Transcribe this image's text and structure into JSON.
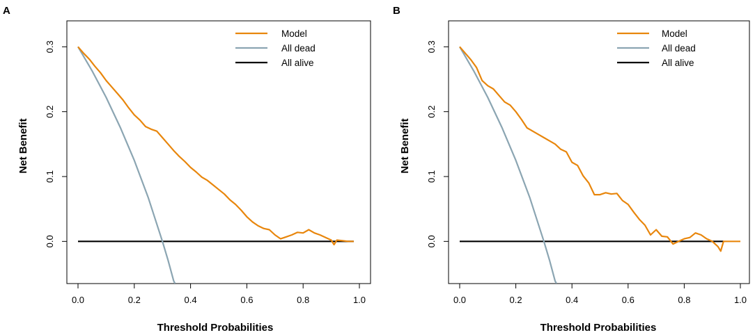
{
  "chart_data": [
    {
      "panel_label": "A",
      "type": "line",
      "xlabel": "Threshold Probabilities",
      "ylabel": "Net Benefit",
      "xlim": [
        0.0,
        1.0
      ],
      "ylim": [
        -0.065,
        0.34
      ],
      "xticks": [
        "0.0",
        "0.2",
        "0.4",
        "0.6",
        "0.8",
        "1.0"
      ],
      "yticks": [
        "0.0",
        "0.1",
        "0.2",
        "0.3"
      ],
      "legend_position": "top-right",
      "series": [
        {
          "name": "Model",
          "color": "#E8860C",
          "x": [
            0.0,
            0.02,
            0.04,
            0.06,
            0.08,
            0.1,
            0.12,
            0.14,
            0.16,
            0.18,
            0.2,
            0.22,
            0.24,
            0.26,
            0.28,
            0.3,
            0.32,
            0.34,
            0.36,
            0.38,
            0.4,
            0.42,
            0.44,
            0.46,
            0.48,
            0.5,
            0.52,
            0.54,
            0.56,
            0.58,
            0.6,
            0.62,
            0.64,
            0.66,
            0.68,
            0.7,
            0.72,
            0.74,
            0.76,
            0.78,
            0.8,
            0.82,
            0.84,
            0.86,
            0.88,
            0.9,
            0.91,
            0.92,
            0.94,
            0.96,
            0.98
          ],
          "y": [
            0.3,
            0.29,
            0.281,
            0.27,
            0.26,
            0.248,
            0.238,
            0.228,
            0.218,
            0.206,
            0.195,
            0.187,
            0.177,
            0.173,
            0.17,
            0.16,
            0.15,
            0.14,
            0.131,
            0.123,
            0.114,
            0.107,
            0.099,
            0.094,
            0.087,
            0.08,
            0.073,
            0.064,
            0.057,
            0.048,
            0.038,
            0.03,
            0.024,
            0.02,
            0.018,
            0.01,
            0.004,
            0.007,
            0.01,
            0.014,
            0.013,
            0.018,
            0.013,
            0.01,
            0.006,
            0.002,
            -0.005,
            0.002,
            0.001,
            0.0,
            0.0
          ]
        },
        {
          "name": "All dead",
          "color": "#8BA5B2",
          "x": [
            0.0,
            0.05,
            0.1,
            0.15,
            0.2,
            0.25,
            0.3,
            0.32,
            0.34,
            0.345
          ],
          "y": [
            0.3,
            0.263,
            0.222,
            0.176,
            0.125,
            0.067,
            0.0,
            -0.029,
            -0.061,
            -0.065
          ]
        },
        {
          "name": "All alive",
          "color": "#000000",
          "x": [
            0.0,
            0.98
          ],
          "y": [
            0.0,
            0.0
          ]
        }
      ]
    },
    {
      "panel_label": "B",
      "type": "line",
      "xlabel": "Threshold Probabilities",
      "ylabel": "Net Benefit",
      "xlim": [
        0.0,
        1.0
      ],
      "ylim": [
        -0.065,
        0.34
      ],
      "xticks": [
        "0.0",
        "0.2",
        "0.4",
        "0.6",
        "0.8",
        "1.0"
      ],
      "yticks": [
        "0.0",
        "0.1",
        "0.2",
        "0.3"
      ],
      "legend_position": "top-right",
      "series": [
        {
          "name": "Model",
          "color": "#E8860C",
          "x": [
            0.0,
            0.02,
            0.04,
            0.06,
            0.08,
            0.1,
            0.12,
            0.14,
            0.16,
            0.18,
            0.2,
            0.22,
            0.24,
            0.26,
            0.28,
            0.3,
            0.32,
            0.34,
            0.36,
            0.38,
            0.4,
            0.42,
            0.44,
            0.46,
            0.48,
            0.5,
            0.52,
            0.54,
            0.56,
            0.58,
            0.6,
            0.62,
            0.64,
            0.66,
            0.68,
            0.7,
            0.72,
            0.74,
            0.76,
            0.78,
            0.8,
            0.82,
            0.84,
            0.86,
            0.88,
            0.9,
            0.92,
            0.93,
            0.94,
            0.96,
            0.98,
            1.0
          ],
          "y": [
            0.3,
            0.29,
            0.28,
            0.268,
            0.248,
            0.24,
            0.235,
            0.225,
            0.215,
            0.21,
            0.2,
            0.188,
            0.175,
            0.17,
            0.165,
            0.16,
            0.155,
            0.15,
            0.142,
            0.138,
            0.122,
            0.117,
            0.101,
            0.09,
            0.072,
            0.072,
            0.075,
            0.073,
            0.074,
            0.063,
            0.057,
            0.045,
            0.034,
            0.025,
            0.01,
            0.018,
            0.008,
            0.007,
            -0.004,
            0.0,
            0.004,
            0.006,
            0.013,
            0.01,
            0.004,
            0.0,
            -0.008,
            -0.015,
            0.0,
            0.0,
            0.0,
            0.0
          ]
        },
        {
          "name": "All dead",
          "color": "#8BA5B2",
          "x": [
            0.0,
            0.05,
            0.1,
            0.15,
            0.2,
            0.25,
            0.3,
            0.32,
            0.34,
            0.345
          ],
          "y": [
            0.3,
            0.263,
            0.222,
            0.176,
            0.125,
            0.067,
            0.0,
            -0.029,
            -0.061,
            -0.065
          ]
        },
        {
          "name": "All alive",
          "color": "#000000",
          "x": [
            0.0,
            0.94
          ],
          "y": [
            0.0,
            0.0
          ]
        }
      ]
    }
  ]
}
